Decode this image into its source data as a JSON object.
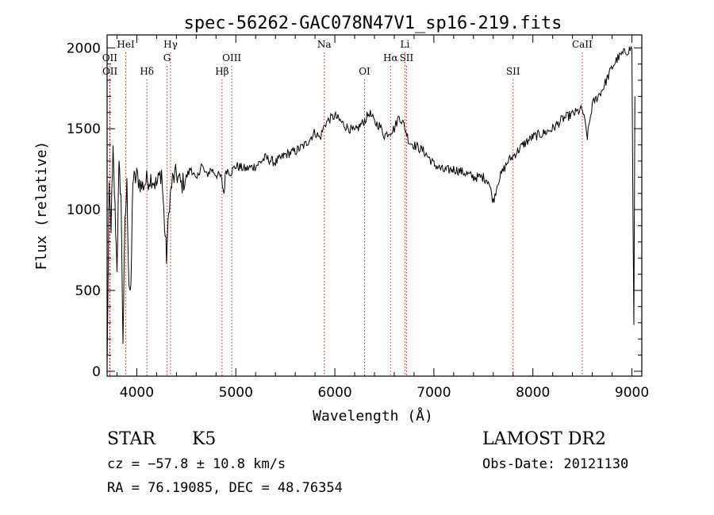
{
  "chart_data": {
    "type": "line",
    "title": "spec-56262-GAC078N47V1_sp16-219.fits",
    "xlabel": "Wavelength (Å)",
    "ylabel": "Flux (relative)",
    "xlim": [
      3700,
      9100
    ],
    "ylim": [
      -30,
      2080
    ],
    "x_ticks": [
      4000,
      5000,
      6000,
      7000,
      8000,
      9000
    ],
    "y_ticks": [
      0,
      500,
      1000,
      1500,
      2000
    ],
    "grid": false,
    "series": [
      {
        "color": "#000000",
        "points": [
          [
            3700,
            20
          ],
          [
            3720,
            1100
          ],
          [
            3740,
            900
          ],
          [
            3760,
            1350
          ],
          [
            3780,
            1000
          ],
          [
            3800,
            650
          ],
          [
            3820,
            1250
          ],
          [
            3840,
            1100
          ],
          [
            3860,
            200
          ],
          [
            3880,
            900
          ],
          [
            3900,
            1150
          ],
          [
            3920,
            560
          ],
          [
            3940,
            470
          ],
          [
            3960,
            1200
          ],
          [
            3980,
            1180
          ],
          [
            4000,
            1210
          ],
          [
            4050,
            1140
          ],
          [
            4100,
            1180
          ],
          [
            4150,
            1200
          ],
          [
            4200,
            1150
          ],
          [
            4250,
            1240
          ],
          [
            4280,
            900
          ],
          [
            4300,
            710
          ],
          [
            4330,
            1050
          ],
          [
            4360,
            1180
          ],
          [
            4400,
            1220
          ],
          [
            4450,
            1150
          ],
          [
            4500,
            1200
          ],
          [
            4550,
            1260
          ],
          [
            4600,
            1170
          ],
          [
            4650,
            1280
          ],
          [
            4700,
            1210
          ],
          [
            4750,
            1250
          ],
          [
            4800,
            1220
          ],
          [
            4850,
            1200
          ],
          [
            4880,
            1100
          ],
          [
            4900,
            1250
          ],
          [
            4950,
            1230
          ],
          [
            5000,
            1270
          ],
          [
            5100,
            1250
          ],
          [
            5200,
            1270
          ],
          [
            5300,
            1320
          ],
          [
            5400,
            1290
          ],
          [
            5500,
            1340
          ],
          [
            5600,
            1360
          ],
          [
            5700,
            1400
          ],
          [
            5800,
            1480
          ],
          [
            5850,
            1440
          ],
          [
            5900,
            1530
          ],
          [
            5950,
            1560
          ],
          [
            6000,
            1580
          ],
          [
            6100,
            1520
          ],
          [
            6200,
            1480
          ],
          [
            6300,
            1550
          ],
          [
            6350,
            1600
          ],
          [
            6400,
            1540
          ],
          [
            6450,
            1520
          ],
          [
            6500,
            1460
          ],
          [
            6550,
            1480
          ],
          [
            6600,
            1500
          ],
          [
            6650,
            1580
          ],
          [
            6700,
            1520
          ],
          [
            6750,
            1420
          ],
          [
            6800,
            1400
          ],
          [
            6900,
            1360
          ],
          [
            7000,
            1280
          ],
          [
            7100,
            1240
          ],
          [
            7200,
            1250
          ],
          [
            7300,
            1230
          ],
          [
            7400,
            1200
          ],
          [
            7500,
            1200
          ],
          [
            7550,
            1180
          ],
          [
            7600,
            1050
          ],
          [
            7650,
            1180
          ],
          [
            7700,
            1240
          ],
          [
            7750,
            1300
          ],
          [
            7800,
            1330
          ],
          [
            7900,
            1400
          ],
          [
            8000,
            1450
          ],
          [
            8100,
            1470
          ],
          [
            8200,
            1500
          ],
          [
            8300,
            1560
          ],
          [
            8400,
            1590
          ],
          [
            8500,
            1620
          ],
          [
            8550,
            1450
          ],
          [
            8600,
            1650
          ],
          [
            8700,
            1740
          ],
          [
            8800,
            1880
          ],
          [
            8850,
            1930
          ],
          [
            8900,
            1960
          ],
          [
            8950,
            1980
          ],
          [
            9000,
            2000
          ],
          [
            9010,
            1000
          ],
          [
            9020,
            300
          ],
          [
            9030,
            1700
          ]
        ]
      }
    ],
    "line_markers": [
      {
        "label": "OII",
        "wavelength": 3727,
        "row": 1
      },
      {
        "label": "OII",
        "wavelength": 3729,
        "row": 2
      },
      {
        "label": "HeI",
        "wavelength": 3889,
        "row": 0
      },
      {
        "label": "Hδ",
        "wavelength": 4102,
        "row": 2
      },
      {
        "label": "Hγ",
        "wavelength": 4341,
        "row": 0
      },
      {
        "label": "G",
        "wavelength": 4305,
        "row": 1
      },
      {
        "label": "Hβ",
        "wavelength": 4861,
        "row": 2
      },
      {
        "label": "OIII",
        "wavelength": 4959,
        "row": 1
      },
      {
        "label": "Na",
        "wavelength": 5893,
        "row": 0
      },
      {
        "label": "OI",
        "wavelength": 6300,
        "row": 2
      },
      {
        "label": "Hα",
        "wavelength": 6563,
        "row": 1
      },
      {
        "label": "Li",
        "wavelength": 6708,
        "row": 0
      },
      {
        "label": "SII",
        "wavelength": 6724,
        "row": 1
      },
      {
        "label": "SII",
        "wavelength": 7800,
        "row": 2
      },
      {
        "label": "CaII",
        "wavelength": 8498,
        "row": 0
      }
    ],
    "marker_color": "#b22222"
  },
  "info": {
    "object_class": "STAR",
    "subclass": "K5",
    "redshift_line": "cz = −57.8 ± 10.8 km/s",
    "radec_line": "RA =  76.19085, DEC =  48.76354",
    "survey": "LAMOST DR2",
    "obs_date": "Obs-Date: 20121130"
  }
}
